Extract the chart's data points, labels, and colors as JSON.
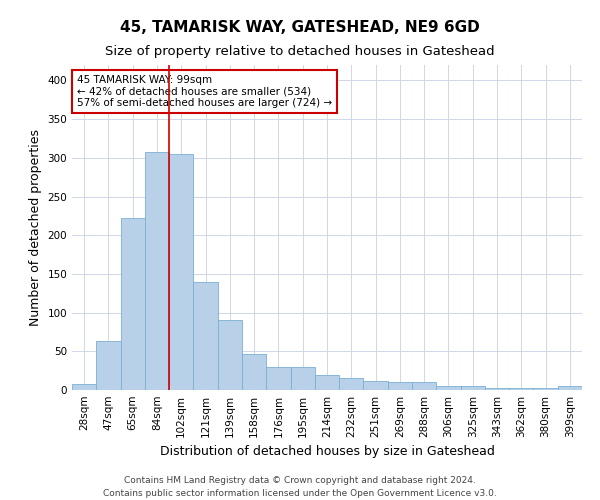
{
  "title": "45, TAMARISK WAY, GATESHEAD, NE9 6GD",
  "subtitle": "Size of property relative to detached houses in Gateshead",
  "xlabel": "Distribution of detached houses by size in Gateshead",
  "ylabel": "Number of detached properties",
  "categories": [
    "28sqm",
    "47sqm",
    "65sqm",
    "84sqm",
    "102sqm",
    "121sqm",
    "139sqm",
    "158sqm",
    "176sqm",
    "195sqm",
    "214sqm",
    "232sqm",
    "251sqm",
    "269sqm",
    "288sqm",
    "306sqm",
    "325sqm",
    "343sqm",
    "362sqm",
    "380sqm",
    "399sqm"
  ],
  "values": [
    8,
    63,
    222,
    307,
    305,
    140,
    90,
    47,
    30,
    30,
    19,
    15,
    12,
    10,
    10,
    5,
    5,
    3,
    3,
    3,
    5
  ],
  "bar_color": "#b8d0e8",
  "bar_edge_color": "#7aafd4",
  "vline_x_index": 4,
  "vline_color": "#cc0000",
  "annotation_text": "45 TAMARISK WAY: 99sqm\n← 42% of detached houses are smaller (534)\n57% of semi-detached houses are larger (724) →",
  "annotation_box_color": "#ffffff",
  "annotation_box_edge_color": "#cc0000",
  "ylim": [
    0,
    420
  ],
  "yticks": [
    0,
    50,
    100,
    150,
    200,
    250,
    300,
    350,
    400
  ],
  "footer_line1": "Contains HM Land Registry data © Crown copyright and database right 2024.",
  "footer_line2": "Contains public sector information licensed under the Open Government Licence v3.0.",
  "background_color": "#ffffff",
  "grid_color": "#d0d8e8",
  "title_fontsize": 11,
  "subtitle_fontsize": 9.5,
  "axis_label_fontsize": 9,
  "tick_fontsize": 7.5,
  "footer_fontsize": 6.5
}
